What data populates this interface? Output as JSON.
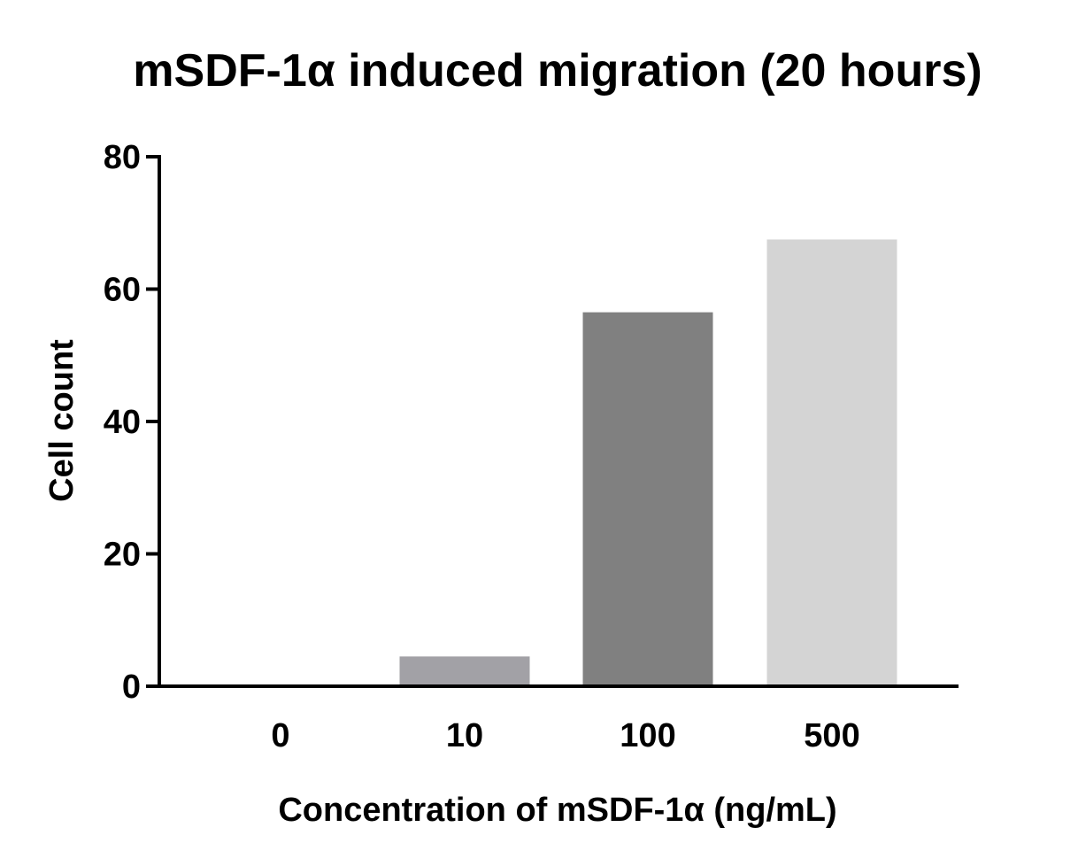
{
  "chart_data": {
    "type": "bar",
    "title": "mSDF-1α induced migration (20 hours)",
    "xlabel": "Concentration of mSDF-1α (ng/mL)",
    "ylabel": "Cell count",
    "categories": [
      "0",
      "10",
      "100",
      "500"
    ],
    "values": [
      0,
      4.5,
      56.5,
      67.5
    ],
    "colors": [
      "#ffffff",
      "#a2a1a6",
      "#808080",
      "#d4d4d4"
    ],
    "ylim": [
      0,
      80
    ],
    "yticks": [
      0,
      20,
      40,
      60,
      80
    ],
    "ytick_labels": [
      "0",
      "20",
      "40",
      "60",
      "80"
    ],
    "grid": false,
    "legend": "none"
  }
}
